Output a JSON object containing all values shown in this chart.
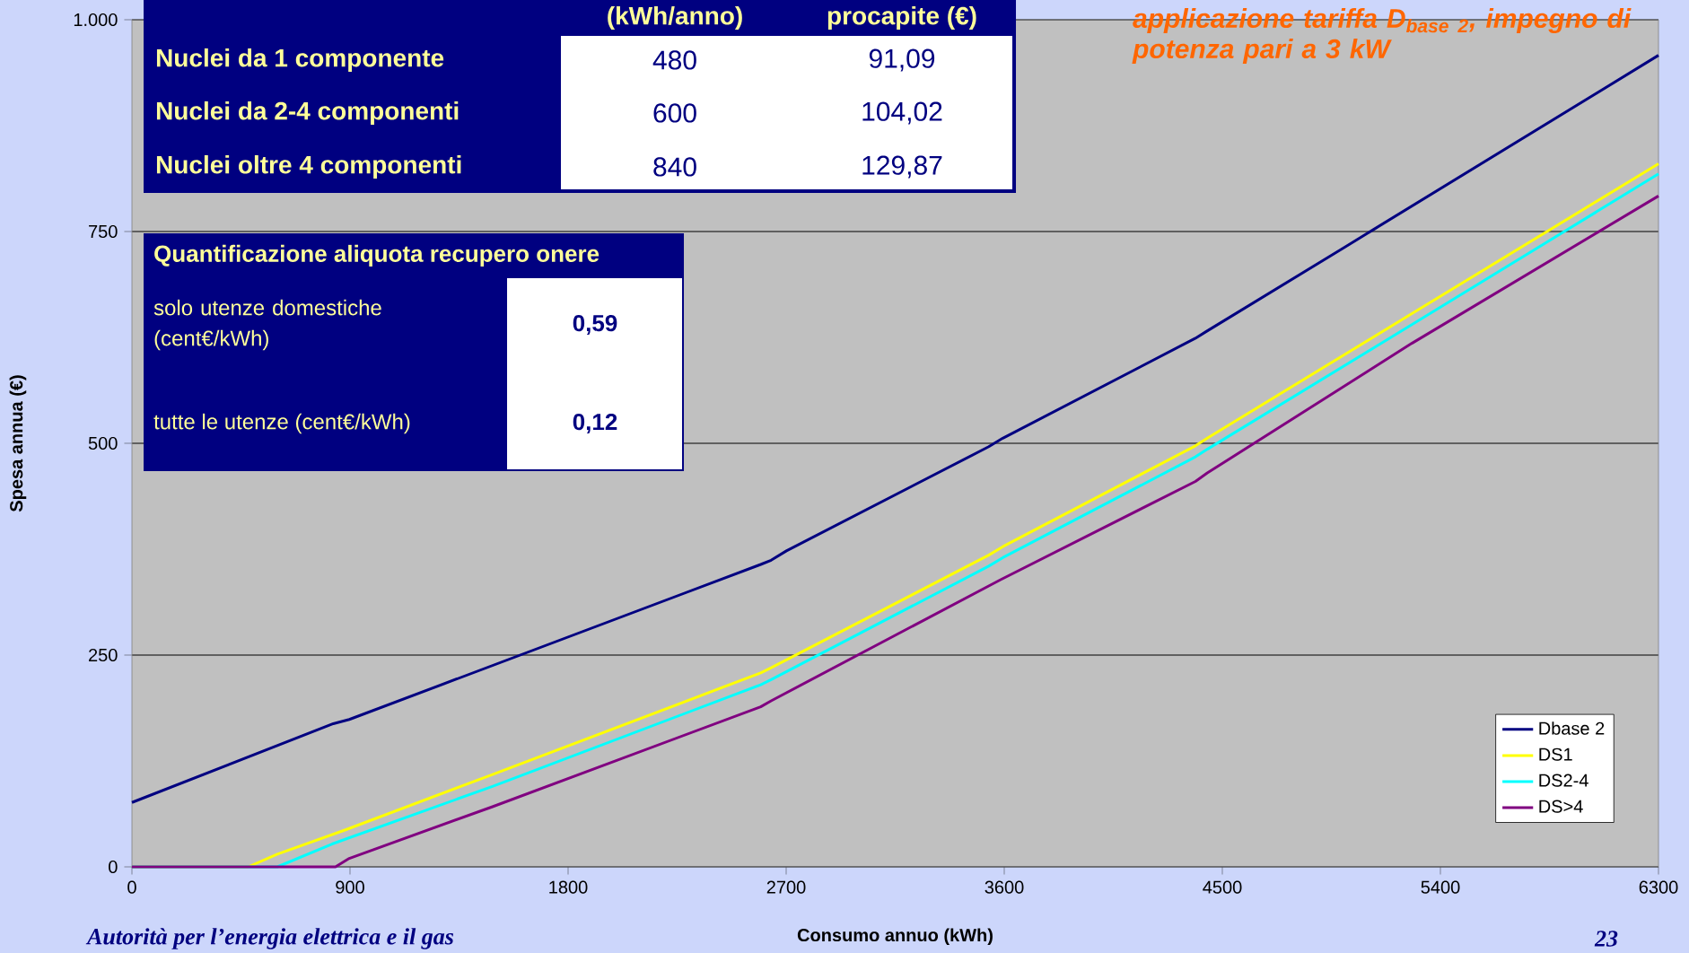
{
  "chart_data": {
    "type": "line",
    "title": "applicazione tariffa D$_{base 2}$, impegno di potenza pari a 3 kW",
    "xlabel": "Consumo annuo (kWh)",
    "ylabel": "Spesa annua (€)",
    "xlim": [
      0,
      6300
    ],
    "ylim": [
      0,
      1000
    ],
    "xticks": [
      0,
      900,
      1800,
      2700,
      3600,
      4500,
      5400,
      6300
    ],
    "yticks": [
      0,
      250,
      500,
      750,
      {
        "value": 1000,
        "label": "1.000"
      }
    ],
    "grid": "y",
    "legend": "bottom right",
    "series": [
      {
        "name": "Dbase 2",
        "color": "#000080",
        "x": [
          0,
          831,
          897,
          2595,
          2638,
          2701,
          3536,
          3594,
          4389,
          4434,
          5002,
          5122,
          6300
        ],
        "values": [
          76,
          169,
          174,
          357,
          362,
          373,
          496,
          506,
          624,
          632,
          731,
          752,
          958
        ]
      },
      {
        "name": "DS1",
        "color": "#ffff00",
        "x": [
          0,
          480,
          600,
          884,
          1488,
          2595,
          2638,
          3536,
          3594,
          4389,
          4438,
          5282,
          6300
        ],
        "values": [
          0,
          0,
          15,
          44,
          109,
          229,
          235,
          368,
          378,
          497,
          506,
          653,
          830
        ]
      },
      {
        "name": "DS2-4",
        "color": "#00ffff",
        "x": [
          0,
          600,
          826,
          1488,
          2595,
          2638,
          3536,
          3594,
          4389,
          4438,
          5282,
          6300
        ],
        "values": [
          0,
          0,
          27,
          95,
          215,
          221,
          355,
          365,
          484,
          493,
          640,
          818
        ]
      },
      {
        "name": "DS>4",
        "color": "#800080",
        "x": [
          0,
          840,
          897,
          1488,
          2595,
          2638,
          3585,
          4389,
          4438,
          5282,
          6300
        ],
        "values": [
          0,
          0,
          10,
          71,
          189,
          196,
          339,
          455,
          465,
          618,
          792
        ]
      }
    ],
    "annotations": [
      "(kWh/anno)",
      "procapite (€)",
      "Nuclei da 1 componente",
      "480",
      "91,09",
      "Nuclei da 2-4 componenti",
      "600",
      "104,02",
      "Nuclei oltre 4 componenti",
      "840",
      "129,87",
      "Quantificazione aliquota recupero onere",
      "solo utenze domestiche (cent€/kWh)",
      "0,59",
      "tutte le utenze (cent€/kWh)",
      "0,12",
      "Autorità per l’energia elettrica e il gas",
      "23"
    ]
  }
}
